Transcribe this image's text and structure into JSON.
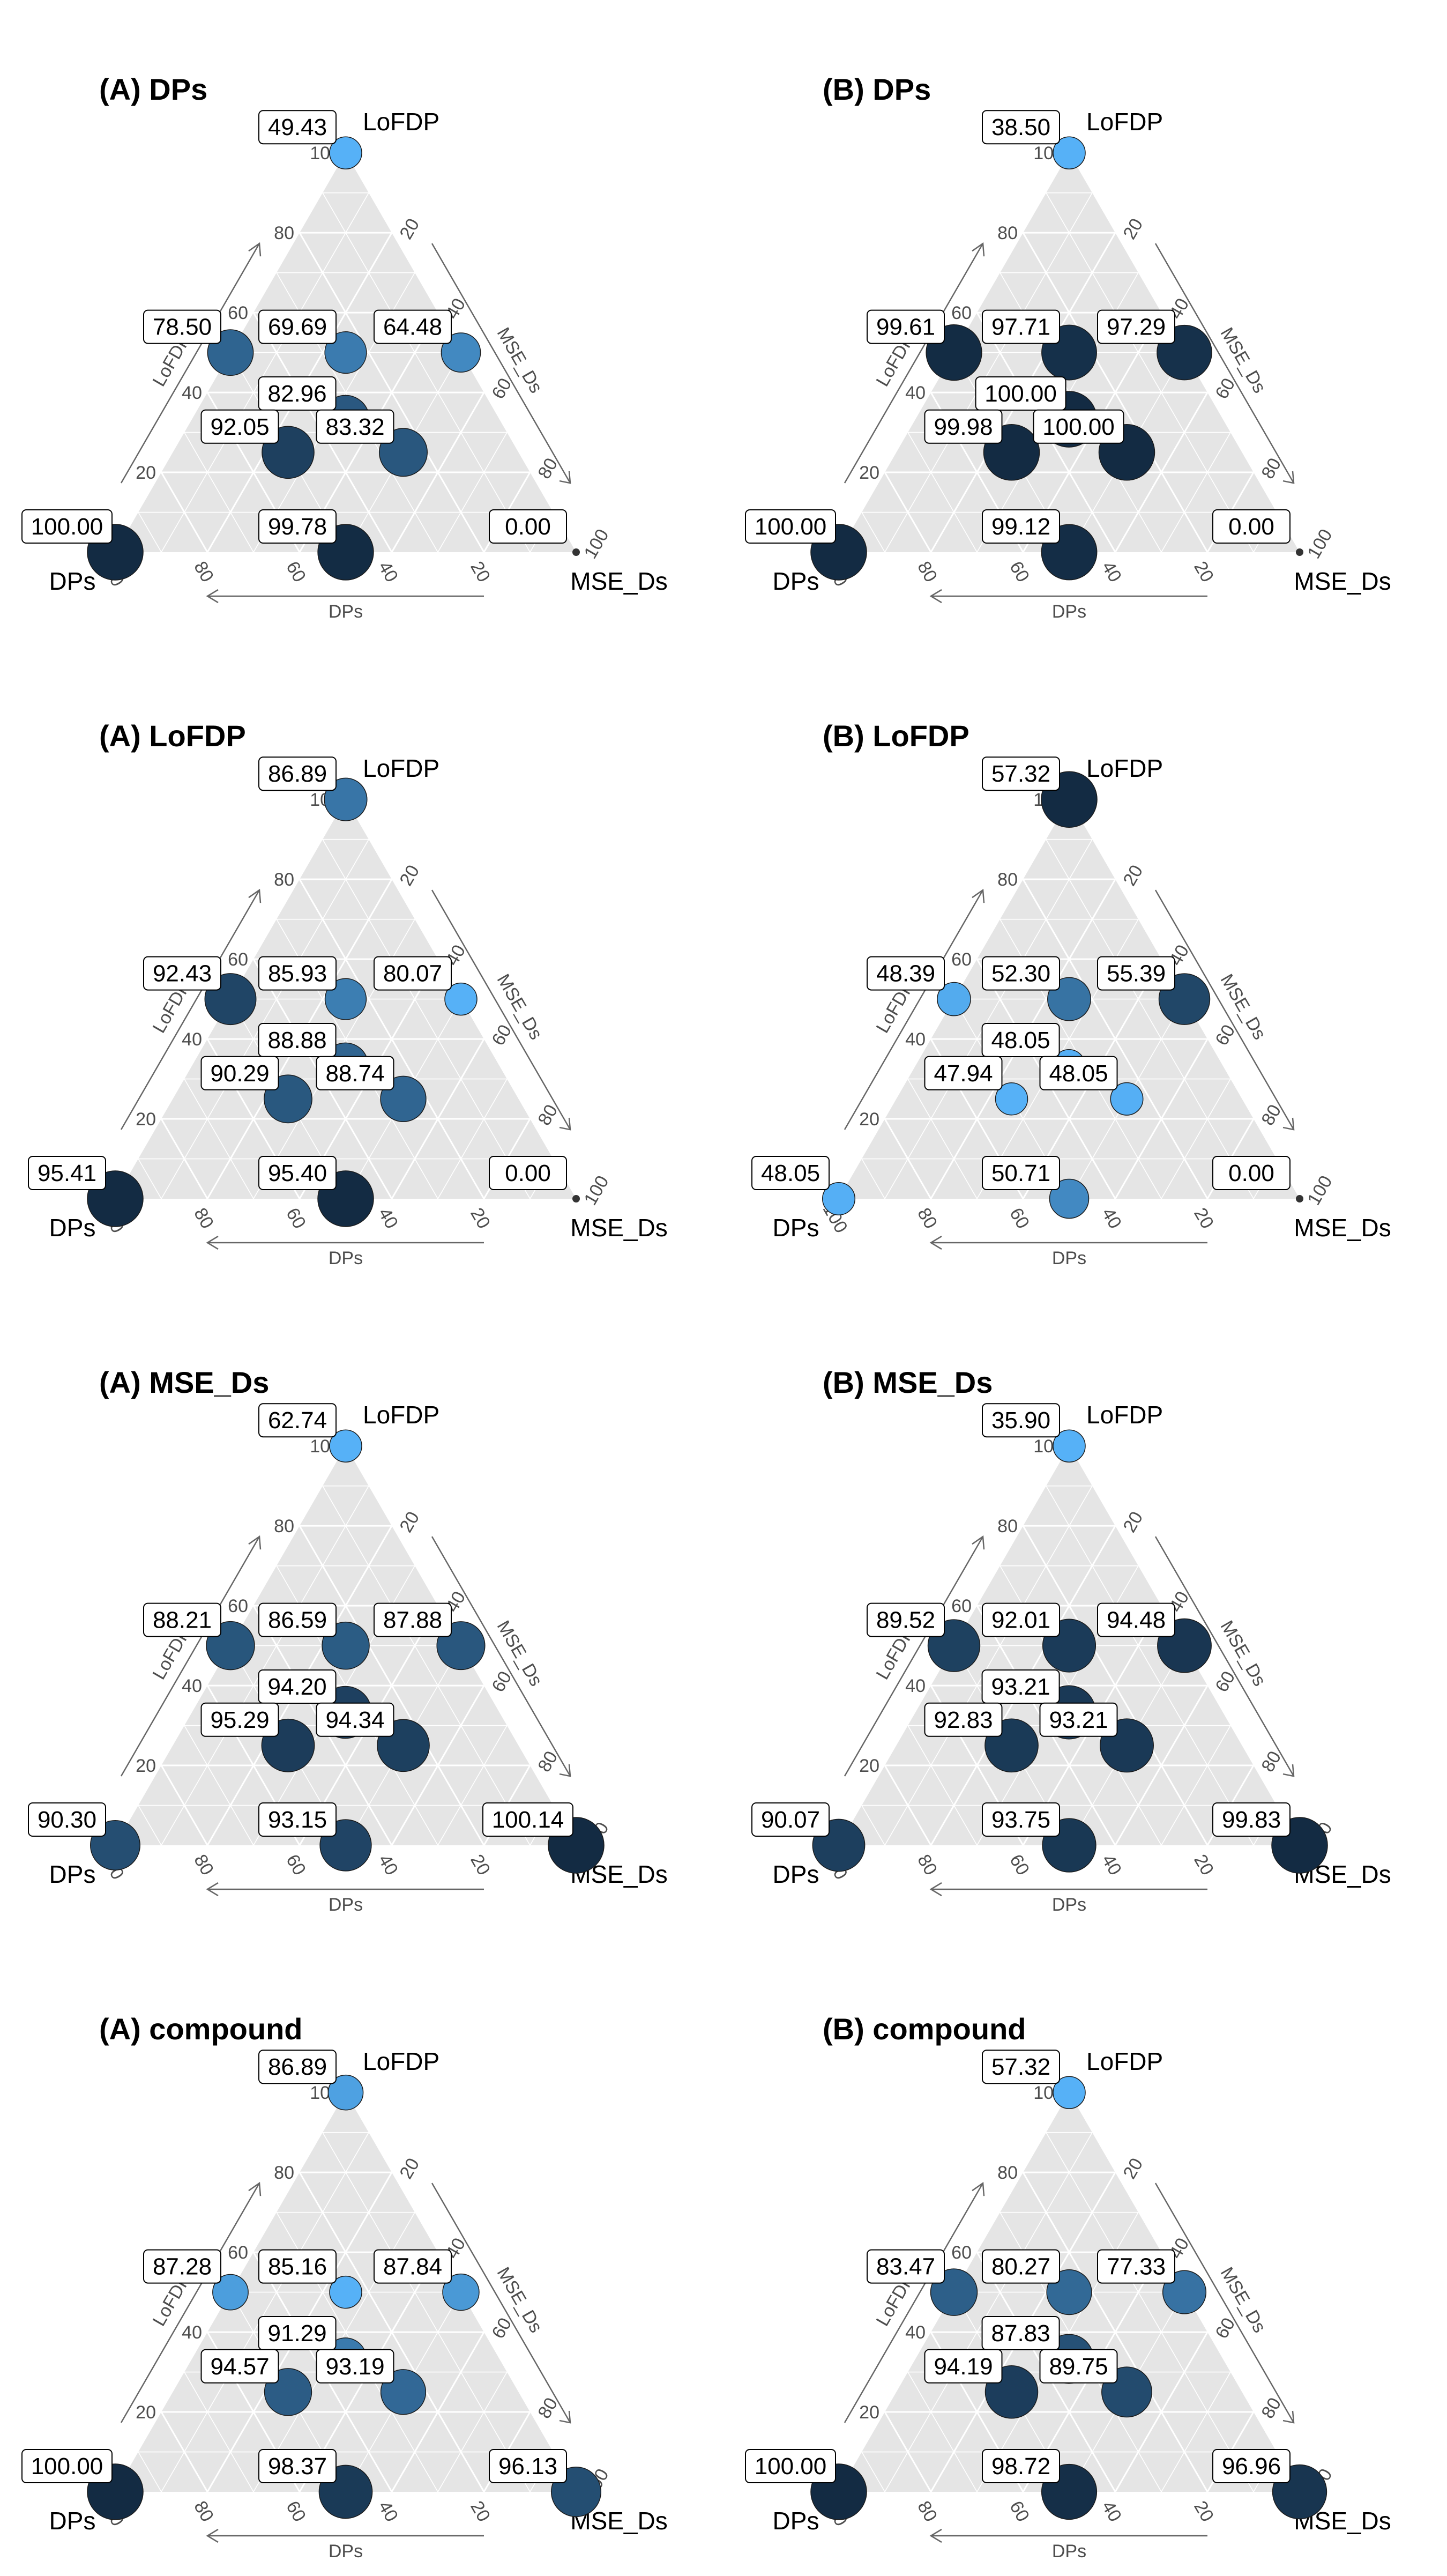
{
  "chart_data": [
    {
      "type": "scatter",
      "subtype": "ternary",
      "title": "(A) DPs",
      "vertex_labels": {
        "top": "LoFDP",
        "left": "DPs",
        "right": "MSE_Ds"
      },
      "axis_titles": {
        "left": "LoFDP",
        "right": "MSE_Ds",
        "bottom": "DPs"
      },
      "ticks": [
        "20",
        "40",
        "60",
        "80",
        "100"
      ],
      "color_scale": {
        "low": "#56B1F7",
        "high": "#132B43"
      },
      "points": [
        {
          "DPs": 0,
          "LoFDP": 100,
          "MSE_Ds": 0,
          "value": 49.43,
          "label": "49.43"
        },
        {
          "DPs": 50,
          "LoFDP": 50,
          "MSE_Ds": 0,
          "value": 78.5,
          "label": "78.50"
        },
        {
          "DPs": 25,
          "LoFDP": 50,
          "MSE_Ds": 25,
          "value": 69.69,
          "label": "69.69"
        },
        {
          "DPs": 0,
          "LoFDP": 50,
          "MSE_Ds": 50,
          "value": 64.48,
          "label": "64.48"
        },
        {
          "DPs": 33.3,
          "LoFDP": 33.3,
          "MSE_Ds": 33.3,
          "value": 82.96,
          "label": "82.96"
        },
        {
          "DPs": 50,
          "LoFDP": 25,
          "MSE_Ds": 25,
          "value": 92.05,
          "label": "92.05"
        },
        {
          "DPs": 25,
          "LoFDP": 25,
          "MSE_Ds": 50,
          "value": 83.32,
          "label": "83.32"
        },
        {
          "DPs": 100,
          "LoFDP": 0,
          "MSE_Ds": 0,
          "value": 100.0,
          "label": "100.00"
        },
        {
          "DPs": 50,
          "LoFDP": 0,
          "MSE_Ds": 50,
          "value": 99.78,
          "label": "99.78"
        },
        {
          "DPs": 0,
          "LoFDP": 0,
          "MSE_Ds": 100,
          "value": 0.0,
          "label": "0.00"
        }
      ]
    },
    {
      "type": "scatter",
      "subtype": "ternary",
      "title": "(B) DPs",
      "vertex_labels": {
        "top": "LoFDP",
        "left": "DPs",
        "right": "MSE_Ds"
      },
      "axis_titles": {
        "left": "LoFDP",
        "right": "MSE_Ds",
        "bottom": "DPs"
      },
      "ticks": [
        "20",
        "40",
        "60",
        "80",
        "100"
      ],
      "color_scale": {
        "low": "#56B1F7",
        "high": "#132B43"
      },
      "points": [
        {
          "DPs": 0,
          "LoFDP": 100,
          "MSE_Ds": 0,
          "value": 38.5,
          "label": "38.50"
        },
        {
          "DPs": 50,
          "LoFDP": 50,
          "MSE_Ds": 0,
          "value": 99.61,
          "label": "99.61"
        },
        {
          "DPs": 25,
          "LoFDP": 50,
          "MSE_Ds": 25,
          "value": 97.71,
          "label": "97.71"
        },
        {
          "DPs": 0,
          "LoFDP": 50,
          "MSE_Ds": 50,
          "value": 97.29,
          "label": "97.29"
        },
        {
          "DPs": 33.3,
          "LoFDP": 33.3,
          "MSE_Ds": 33.3,
          "value": 100.0,
          "label": "100.00"
        },
        {
          "DPs": 50,
          "LoFDP": 25,
          "MSE_Ds": 25,
          "value": 99.98,
          "label": "99.98"
        },
        {
          "DPs": 25,
          "LoFDP": 25,
          "MSE_Ds": 50,
          "value": 100.0,
          "label": "100.00"
        },
        {
          "DPs": 100,
          "LoFDP": 0,
          "MSE_Ds": 0,
          "value": 100.0,
          "label": "100.00"
        },
        {
          "DPs": 50,
          "LoFDP": 0,
          "MSE_Ds": 50,
          "value": 99.12,
          "label": "99.12"
        },
        {
          "DPs": 0,
          "LoFDP": 0,
          "MSE_Ds": 100,
          "value": 0.0,
          "label": "0.00"
        }
      ]
    },
    {
      "type": "scatter",
      "subtype": "ternary",
      "title": "(A) LoFDP",
      "vertex_labels": {
        "top": "LoFDP",
        "left": "DPs",
        "right": "MSE_Ds"
      },
      "axis_titles": {
        "left": "LoFDP",
        "right": "MSE_Ds",
        "bottom": "DPs"
      },
      "ticks": [
        "20",
        "40",
        "60",
        "80",
        "100"
      ],
      "color_scale": {
        "low": "#56B1F7",
        "high": "#132B43"
      },
      "points": [
        {
          "DPs": 0,
          "LoFDP": 100,
          "MSE_Ds": 0,
          "value": 86.89,
          "label": "86.89"
        },
        {
          "DPs": 50,
          "LoFDP": 50,
          "MSE_Ds": 0,
          "value": 92.43,
          "label": "92.43"
        },
        {
          "DPs": 25,
          "LoFDP": 50,
          "MSE_Ds": 25,
          "value": 85.93,
          "label": "85.93"
        },
        {
          "DPs": 0,
          "LoFDP": 50,
          "MSE_Ds": 50,
          "value": 80.07,
          "label": "80.07"
        },
        {
          "DPs": 33.3,
          "LoFDP": 33.3,
          "MSE_Ds": 33.3,
          "value": 88.88,
          "label": "88.88"
        },
        {
          "DPs": 50,
          "LoFDP": 25,
          "MSE_Ds": 25,
          "value": 90.29,
          "label": "90.29"
        },
        {
          "DPs": 25,
          "LoFDP": 25,
          "MSE_Ds": 50,
          "value": 88.74,
          "label": "88.74"
        },
        {
          "DPs": 100,
          "LoFDP": 0,
          "MSE_Ds": 0,
          "value": 95.41,
          "label": "95.41"
        },
        {
          "DPs": 50,
          "LoFDP": 0,
          "MSE_Ds": 50,
          "value": 95.4,
          "label": "95.40"
        },
        {
          "DPs": 0,
          "LoFDP": 0,
          "MSE_Ds": 100,
          "value": 0.0,
          "label": "0.00"
        }
      ]
    },
    {
      "type": "scatter",
      "subtype": "ternary",
      "title": "(B) LoFDP",
      "vertex_labels": {
        "top": "LoFDP",
        "left": "DPs",
        "right": "MSE_Ds"
      },
      "axis_titles": {
        "left": "LoFDP",
        "right": "MSE_Ds",
        "bottom": "DPs"
      },
      "ticks": [
        "20",
        "40",
        "60",
        "80",
        "100"
      ],
      "color_scale": {
        "low": "#56B1F7",
        "high": "#132B43"
      },
      "points": [
        {
          "DPs": 0,
          "LoFDP": 100,
          "MSE_Ds": 0,
          "value": 57.32,
          "label": "57.32"
        },
        {
          "DPs": 50,
          "LoFDP": 50,
          "MSE_Ds": 0,
          "value": 48.39,
          "label": "48.39"
        },
        {
          "DPs": 25,
          "LoFDP": 50,
          "MSE_Ds": 25,
          "value": 52.3,
          "label": "52.30"
        },
        {
          "DPs": 0,
          "LoFDP": 50,
          "MSE_Ds": 50,
          "value": 55.39,
          "label": "55.39"
        },
        {
          "DPs": 33.3,
          "LoFDP": 33.3,
          "MSE_Ds": 33.3,
          "value": 48.05,
          "label": "48.05"
        },
        {
          "DPs": 50,
          "LoFDP": 25,
          "MSE_Ds": 25,
          "value": 47.94,
          "label": "47.94"
        },
        {
          "DPs": 25,
          "LoFDP": 25,
          "MSE_Ds": 50,
          "value": 48.05,
          "label": "48.05"
        },
        {
          "DPs": 100,
          "LoFDP": 0,
          "MSE_Ds": 0,
          "value": 48.05,
          "label": "48.05"
        },
        {
          "DPs": 50,
          "LoFDP": 0,
          "MSE_Ds": 50,
          "value": 50.71,
          "label": "50.71"
        },
        {
          "DPs": 0,
          "LoFDP": 0,
          "MSE_Ds": 100,
          "value": 0.0,
          "label": "0.00"
        }
      ]
    },
    {
      "type": "scatter",
      "subtype": "ternary",
      "title": "(A) MSE_Ds",
      "vertex_labels": {
        "top": "LoFDP",
        "left": "DPs",
        "right": "MSE_Ds"
      },
      "axis_titles": {
        "left": "LoFDP",
        "right": "MSE_Ds",
        "bottom": "DPs"
      },
      "ticks": [
        "20",
        "40",
        "60",
        "80",
        "100"
      ],
      "color_scale": {
        "low": "#56B1F7",
        "high": "#132B43"
      },
      "points": [
        {
          "DPs": 0,
          "LoFDP": 100,
          "MSE_Ds": 0,
          "value": 62.74,
          "label": "62.74"
        },
        {
          "DPs": 50,
          "LoFDP": 50,
          "MSE_Ds": 0,
          "value": 88.21,
          "label": "88.21"
        },
        {
          "DPs": 25,
          "LoFDP": 50,
          "MSE_Ds": 25,
          "value": 86.59,
          "label": "86.59"
        },
        {
          "DPs": 0,
          "LoFDP": 50,
          "MSE_Ds": 50,
          "value": 87.88,
          "label": "87.88"
        },
        {
          "DPs": 33.3,
          "LoFDP": 33.3,
          "MSE_Ds": 33.3,
          "value": 94.2,
          "label": "94.20"
        },
        {
          "DPs": 50,
          "LoFDP": 25,
          "MSE_Ds": 25,
          "value": 95.29,
          "label": "95.29"
        },
        {
          "DPs": 25,
          "LoFDP": 25,
          "MSE_Ds": 50,
          "value": 94.34,
          "label": "94.34"
        },
        {
          "DPs": 100,
          "LoFDP": 0,
          "MSE_Ds": 0,
          "value": 90.3,
          "label": "90.30"
        },
        {
          "DPs": 50,
          "LoFDP": 0,
          "MSE_Ds": 50,
          "value": 93.15,
          "label": "93.15"
        },
        {
          "DPs": 0,
          "LoFDP": 0,
          "MSE_Ds": 100,
          "value": 100.14,
          "label": "100.14"
        }
      ]
    },
    {
      "type": "scatter",
      "subtype": "ternary",
      "title": "(B) MSE_Ds",
      "vertex_labels": {
        "top": "LoFDP",
        "left": "DPs",
        "right": "MSE_Ds"
      },
      "axis_titles": {
        "left": "LoFDP",
        "right": "MSE_Ds",
        "bottom": "DPs"
      },
      "ticks": [
        "20",
        "40",
        "60",
        "80",
        "100"
      ],
      "color_scale": {
        "low": "#56B1F7",
        "high": "#132B43"
      },
      "points": [
        {
          "DPs": 0,
          "LoFDP": 100,
          "MSE_Ds": 0,
          "value": 35.9,
          "label": "35.90"
        },
        {
          "DPs": 50,
          "LoFDP": 50,
          "MSE_Ds": 0,
          "value": 89.52,
          "label": "89.52"
        },
        {
          "DPs": 25,
          "LoFDP": 50,
          "MSE_Ds": 25,
          "value": 92.01,
          "label": "92.01"
        },
        {
          "DPs": 0,
          "LoFDP": 50,
          "MSE_Ds": 50,
          "value": 94.48,
          "label": "94.48"
        },
        {
          "DPs": 33.3,
          "LoFDP": 33.3,
          "MSE_Ds": 33.3,
          "value": 93.21,
          "label": "93.21"
        },
        {
          "DPs": 50,
          "LoFDP": 25,
          "MSE_Ds": 25,
          "value": 92.83,
          "label": "92.83"
        },
        {
          "DPs": 25,
          "LoFDP": 25,
          "MSE_Ds": 50,
          "value": 93.21,
          "label": "93.21"
        },
        {
          "DPs": 100,
          "LoFDP": 0,
          "MSE_Ds": 0,
          "value": 90.07,
          "label": "90.07"
        },
        {
          "DPs": 50,
          "LoFDP": 0,
          "MSE_Ds": 50,
          "value": 93.75,
          "label": "93.75"
        },
        {
          "DPs": 0,
          "LoFDP": 0,
          "MSE_Ds": 100,
          "value": 99.83,
          "label": "99.83"
        }
      ]
    },
    {
      "type": "scatter",
      "subtype": "ternary",
      "title": "(A) compound",
      "vertex_labels": {
        "top": "LoFDP",
        "left": "DPs",
        "right": "MSE_Ds"
      },
      "axis_titles": {
        "left": "LoFDP",
        "right": "MSE_Ds",
        "bottom": "DPs"
      },
      "ticks": [
        "20",
        "40",
        "60",
        "80",
        "100"
      ],
      "color_scale": {
        "low": "#56B1F7",
        "high": "#132B43"
      },
      "points": [
        {
          "DPs": 0,
          "LoFDP": 100,
          "MSE_Ds": 0,
          "value": 86.89,
          "label": "86.89"
        },
        {
          "DPs": 50,
          "LoFDP": 50,
          "MSE_Ds": 0,
          "value": 87.28,
          "label": "87.28"
        },
        {
          "DPs": 25,
          "LoFDP": 50,
          "MSE_Ds": 25,
          "value": 85.16,
          "label": "85.16"
        },
        {
          "DPs": 0,
          "LoFDP": 50,
          "MSE_Ds": 50,
          "value": 87.84,
          "label": "87.84"
        },
        {
          "DPs": 33.3,
          "LoFDP": 33.3,
          "MSE_Ds": 33.3,
          "value": 91.29,
          "label": "91.29"
        },
        {
          "DPs": 50,
          "LoFDP": 25,
          "MSE_Ds": 25,
          "value": 94.57,
          "label": "94.57"
        },
        {
          "DPs": 25,
          "LoFDP": 25,
          "MSE_Ds": 50,
          "value": 93.19,
          "label": "93.19"
        },
        {
          "DPs": 100,
          "LoFDP": 0,
          "MSE_Ds": 0,
          "value": 100.0,
          "label": "100.00"
        },
        {
          "DPs": 50,
          "LoFDP": 0,
          "MSE_Ds": 50,
          "value": 98.37,
          "label": "98.37"
        },
        {
          "DPs": 0,
          "LoFDP": 0,
          "MSE_Ds": 100,
          "value": 96.13,
          "label": "96.13"
        }
      ]
    },
    {
      "type": "scatter",
      "subtype": "ternary",
      "title": "(B) compound",
      "vertex_labels": {
        "top": "LoFDP",
        "left": "DPs",
        "right": "MSE_Ds"
      },
      "axis_titles": {
        "left": "LoFDP",
        "right": "MSE_Ds",
        "bottom": "DPs"
      },
      "ticks": [
        "20",
        "40",
        "60",
        "80",
        "100"
      ],
      "color_scale": {
        "low": "#56B1F7",
        "high": "#132B43"
      },
      "points": [
        {
          "DPs": 0,
          "LoFDP": 100,
          "MSE_Ds": 0,
          "value": 57.32,
          "label": "57.32"
        },
        {
          "DPs": 50,
          "LoFDP": 50,
          "MSE_Ds": 0,
          "value": 83.47,
          "label": "83.47"
        },
        {
          "DPs": 25,
          "LoFDP": 50,
          "MSE_Ds": 25,
          "value": 80.27,
          "label": "80.27"
        },
        {
          "DPs": 0,
          "LoFDP": 50,
          "MSE_Ds": 50,
          "value": 77.33,
          "label": "77.33"
        },
        {
          "DPs": 33.3,
          "LoFDP": 33.3,
          "MSE_Ds": 33.3,
          "value": 87.83,
          "label": "87.83"
        },
        {
          "DPs": 50,
          "LoFDP": 25,
          "MSE_Ds": 25,
          "value": 94.19,
          "label": "94.19"
        },
        {
          "DPs": 25,
          "LoFDP": 25,
          "MSE_Ds": 50,
          "value": 89.75,
          "label": "89.75"
        },
        {
          "DPs": 100,
          "LoFDP": 0,
          "MSE_Ds": 0,
          "value": 100.0,
          "label": "100.00"
        },
        {
          "DPs": 50,
          "LoFDP": 0,
          "MSE_Ds": 50,
          "value": 98.72,
          "label": "98.72"
        },
        {
          "DPs": 0,
          "LoFDP": 0,
          "MSE_Ds": 100,
          "value": 96.96,
          "label": "96.96"
        }
      ]
    }
  ]
}
